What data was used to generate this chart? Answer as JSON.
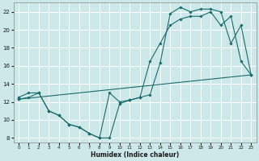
{
  "xlabel": "Humidex (Indice chaleur)",
  "background_color": "#cde8e8",
  "grid_color": "#aed4d4",
  "line_color": "#1a6b6b",
  "xlim": [
    -0.5,
    23.5
  ],
  "ylim": [
    7.5,
    23.0
  ],
  "yticks": [
    8,
    10,
    12,
    14,
    16,
    18,
    20,
    22
  ],
  "xticks": [
    0,
    1,
    2,
    3,
    4,
    5,
    6,
    7,
    8,
    9,
    10,
    11,
    12,
    13,
    14,
    15,
    16,
    17,
    18,
    19,
    20,
    21,
    22,
    23
  ],
  "line1_x": [
    0,
    1,
    2,
    3,
    4,
    5,
    6,
    7,
    8,
    9,
    10,
    11,
    12,
    13,
    14,
    15,
    16,
    17,
    18,
    19,
    20,
    21,
    22,
    23
  ],
  "line1_y": [
    12.5,
    13.0,
    13.0,
    11.0,
    10.5,
    9.5,
    9.2,
    8.5,
    8.0,
    8.0,
    11.8,
    12.2,
    12.5,
    12.8,
    16.3,
    21.8,
    22.5,
    22.0,
    22.3,
    22.3,
    22.0,
    18.5,
    20.5,
    15.0
  ],
  "line2_x": [
    0,
    1,
    2,
    3,
    4,
    5,
    6,
    7,
    8,
    9,
    10,
    11,
    12,
    13,
    14,
    15,
    16,
    17,
    18,
    19,
    20,
    21,
    22,
    23
  ],
  "line2_y": [
    12.3,
    12.5,
    13.0,
    11.0,
    10.5,
    9.5,
    9.2,
    8.5,
    8.0,
    13.0,
    12.0,
    12.2,
    12.5,
    16.5,
    18.5,
    20.5,
    21.2,
    21.5,
    21.5,
    22.0,
    20.5,
    21.5,
    16.5,
    15.0
  ],
  "line3_x": [
    0,
    23
  ],
  "line3_y": [
    12.3,
    15.0
  ]
}
